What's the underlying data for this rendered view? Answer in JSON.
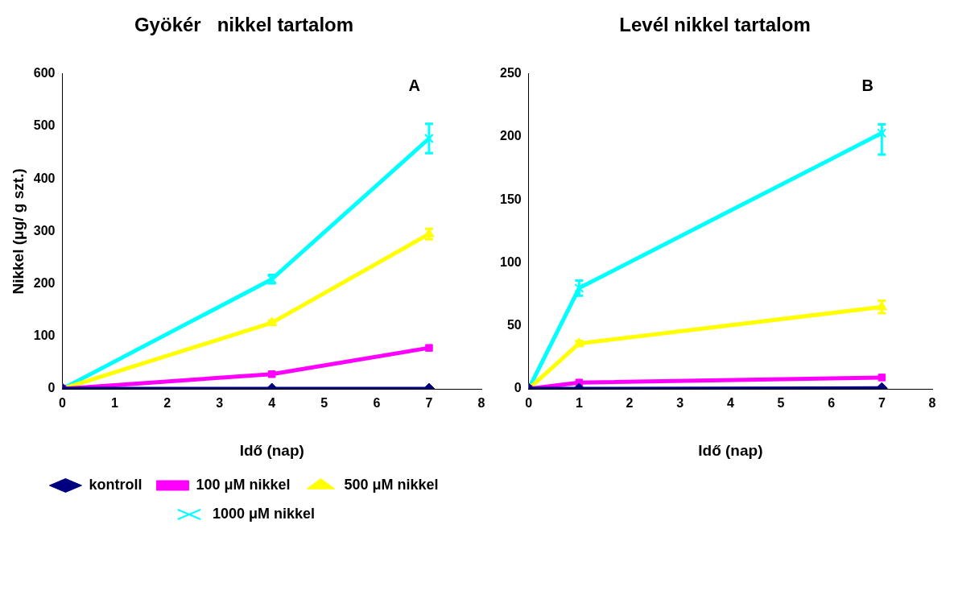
{
  "chart_data": [
    {
      "type": "line",
      "title": "Gyökér   nikkel tartalom",
      "xlabel": "Idő (nap)",
      "ylabel": "Nikkel (μg/ g szt.)",
      "annotations": [
        "A"
      ],
      "xlim": [
        0,
        8
      ],
      "xticks": [
        0,
        1,
        2,
        3,
        4,
        5,
        6,
        7,
        8
      ],
      "ylim": [
        0,
        600
      ],
      "yticks": [
        0,
        100,
        200,
        300,
        400,
        500,
        600
      ],
      "grid": false,
      "legend": "bottom",
      "series": [
        {
          "name": "kontroll",
          "color": "#000080",
          "marker": "diamond",
          "x": [
            0,
            4,
            7
          ],
          "values": [
            0,
            0,
            0
          ]
        },
        {
          "name": "100 μM nikkel",
          "color": "#ff00ff",
          "marker": "square",
          "x": [
            0,
            4,
            7
          ],
          "values": [
            0,
            28,
            78
          ]
        },
        {
          "name": "500 μM nikkel",
          "color": "#ffff00",
          "marker": "triangle",
          "x": [
            0,
            4,
            7
          ],
          "values": [
            0,
            126,
            295
          ],
          "errors": [
            null,
            4,
            10
          ]
        },
        {
          "name": "1000 μM nikkel",
          "color": "#00ffff",
          "marker": "cross",
          "x": [
            0,
            4,
            7
          ],
          "values": [
            0,
            209,
            477
          ],
          "errors": [
            null,
            8,
            28
          ]
        }
      ]
    },
    {
      "type": "line",
      "title": "Levél nikkel tartalom",
      "xlabel": "Idő (nap)",
      "annotations": [
        "B"
      ],
      "xlim": [
        0,
        8
      ],
      "xticks": [
        0,
        1,
        2,
        3,
        4,
        5,
        6,
        7,
        8
      ],
      "ylim": [
        0,
        250
      ],
      "yticks": [
        0,
        50,
        100,
        150,
        200,
        250
      ],
      "grid": false,
      "series": [
        {
          "color": "#000080",
          "marker": "diamond",
          "x": [
            0,
            1,
            7
          ],
          "values": [
            0,
            0,
            0.5
          ]
        },
        {
          "color": "#ff00ff",
          "marker": "square",
          "x": [
            0,
            1,
            7
          ],
          "values": [
            0,
            5,
            9
          ]
        },
        {
          "color": "#ffff00",
          "marker": "triangle",
          "x": [
            0,
            1,
            7
          ],
          "values": [
            0,
            36,
            65
          ],
          "errors": [
            null,
            2,
            5
          ]
        },
        {
          "color": "#00ffff",
          "marker": "cross",
          "x": [
            0,
            1,
            7
          ],
          "values": [
            0,
            80,
            203
          ],
          "errors": [
            null,
            6,
            [
              186,
              210
            ]
          ]
        }
      ]
    }
  ]
}
